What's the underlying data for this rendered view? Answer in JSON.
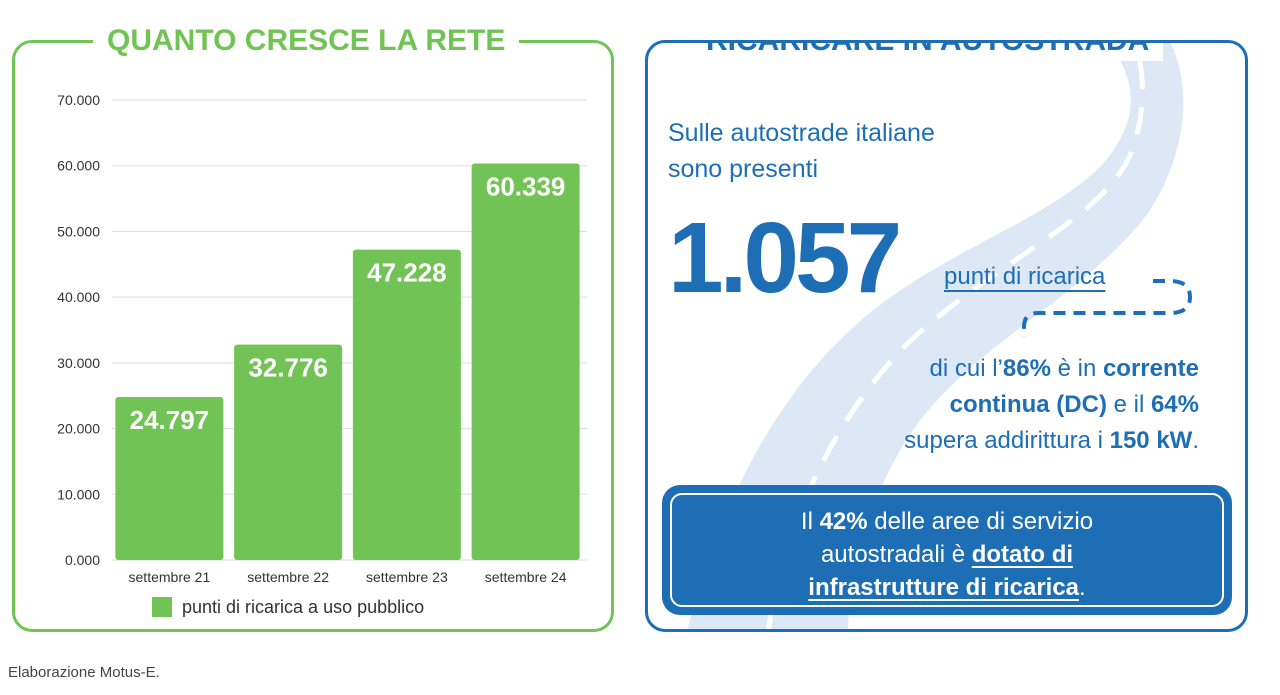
{
  "left_panel": {
    "title": "QUANTO CRESCE LA RETE"
  },
  "right_panel": {
    "title": "RICARICARE IN AUTOSTRADA",
    "intro_line1": "Sulle autostrade italiane",
    "intro_line2": "sono presenti",
    "big_number": "1.057",
    "points_label": "punti di ricarica",
    "dc_line1_pre": "di cui l’",
    "dc_pct": "86%",
    "dc_line1_mid": " è in ",
    "dc_line1_bold": "corrente",
    "dc_line2_bold": "continua (DC)",
    "dc_line2_mid": " e il ",
    "dc_line2_pct": "64%",
    "dc_line3_pre": "supera addirittura i ",
    "dc_line3_bold": "150 kW",
    "dc_line3_end": ".",
    "box_pre": "Il ",
    "box_pct": "42%",
    "box_mid": " delle aree di servizio",
    "box_line2_pre": "autostradali è ",
    "box_line2_link": "dotato di",
    "box_line3_link": "infrastrutture di ricarica",
    "box_line3_end": "."
  },
  "source": "Elaborazione Motus-E.",
  "colors": {
    "green": "#72c355",
    "blue": "#1d6eb5",
    "road": "#dce8f6"
  },
  "chart_data": {
    "type": "bar",
    "categories": [
      "settembre 21",
      "settembre 22",
      "settembre 23",
      "settembre 24"
    ],
    "series": [
      {
        "name": "punti di ricarica a uso pubblico",
        "values": [
          24797,
          32776,
          47228,
          60339
        ],
        "value_labels": [
          "24.797",
          "32.776",
          "47.228",
          "60.339"
        ]
      }
    ],
    "yticks": [
      "0.000",
      "10.000",
      "20.000",
      "30.000",
      "40.000",
      "50.000",
      "60.000",
      "70.000"
    ],
    "ylim": [
      0,
      70000
    ],
    "grid": true,
    "legend": "bottom-center",
    "title": "",
    "xlabel": "",
    "ylabel": ""
  }
}
